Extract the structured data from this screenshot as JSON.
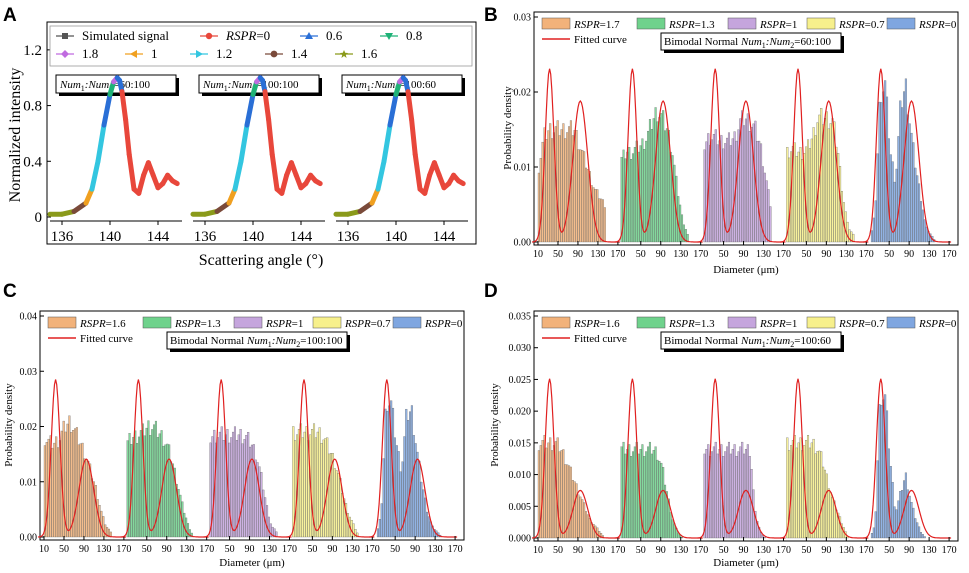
{
  "panels": [
    {
      "letter": "A",
      "chart_data": {
        "type": "line",
        "xlabel": "Scattering angle (°)",
        "ylabel": "Normalized intensity",
        "ylim": [
          0,
          1.4
        ],
        "yticks": [
          "0",
          "0.4",
          "0.8",
          "1.2"
        ],
        "xticks": [
          "136",
          "140",
          "144"
        ],
        "legend": [
          {
            "label": "Simulated signal",
            "color": "#555555",
            "marker": "square"
          },
          {
            "label": "RSPR=0",
            "color": "#e8473b",
            "marker": "circle"
          },
          {
            "label": "0.6",
            "color": "#2a6fd6",
            "marker": "triangle"
          },
          {
            "label": "0.8",
            "color": "#1fb277",
            "marker": "triangle-down"
          },
          {
            "label": "1.8",
            "color": "#c06be0",
            "marker": "diamond"
          },
          {
            "label": "1",
            "color": "#f0a020",
            "marker": "triangle-left"
          },
          {
            "label": "1.2",
            "color": "#33c6e0",
            "marker": "triangle-right"
          },
          {
            "label": "1.4",
            "color": "#7a4a3a",
            "marker": "hexagon"
          },
          {
            "label": "1.6",
            "color": "#8a9a1a",
            "marker": "star"
          }
        ],
        "subplots": [
          {
            "annotation": "Num1:Num2=60:100",
            "xrange": [
              135,
              146
            ]
          },
          {
            "annotation": "Num1:Num2=100:100",
            "xrange": [
              135,
              146
            ]
          },
          {
            "annotation": "Num1:Num2=100:60",
            "xrange": [
              135,
              146
            ]
          }
        ],
        "curve": {
          "x": [
            135.0,
            136.0,
            137.0,
            138.0,
            138.5,
            139.0,
            139.5,
            140.0,
            140.3,
            140.6,
            140.8,
            141.0,
            141.3,
            141.6,
            142.0,
            142.4,
            142.8,
            143.2,
            143.6,
            144.0,
            144.4,
            144.8,
            145.2,
            145.6
          ],
          "y": [
            0.02,
            0.02,
            0.04,
            0.1,
            0.2,
            0.4,
            0.66,
            0.88,
            0.97,
            1.0,
            0.98,
            0.9,
            0.7,
            0.45,
            0.2,
            0.17,
            0.3,
            0.39,
            0.3,
            0.21,
            0.24,
            0.3,
            0.26,
            0.24
          ]
        }
      }
    },
    {
      "letter": "B",
      "chart_data": {
        "type": "bar",
        "xlabel": "Diameter (μm)",
        "ylabel": "Probability density",
        "ylim": [
          0,
          0.03
        ],
        "yticks": [
          "0.00",
          "0.01",
          "0.02",
          "0.03"
        ],
        "xticks": [
          "10",
          "50",
          "90",
          "130",
          "170"
        ],
        "annotation": "Bimodal Normal Num1:Num2=60:100",
        "legend": [
          {
            "label": "RSPR=1.7",
            "color": "#f2b27a"
          },
          {
            "label": "RSPR=1.3",
            "color": "#6fd28c"
          },
          {
            "label": "RSPR=1",
            "color": "#c5a5dd"
          },
          {
            "label": "RSPR=0.7",
            "color": "#f7f08c"
          },
          {
            "label": "RSPR=0",
            "color": "#7fa6e0"
          },
          {
            "label": "Fitted curve",
            "color": "#e02020"
          }
        ],
        "peaks": [
          0.0231,
          0.0188
        ],
        "series": [
          {
            "name": "RSPR=1.7",
            "profile": [
              0.01,
              0.014,
              0.015,
              0.015,
              0.015,
              0.015,
              0.015,
              0.015,
              0.013,
              0.011,
              0.009,
              0.007,
              0.006,
              0.005
            ]
          },
          {
            "name": "RSPR=1.3",
            "profile": [
              0.011,
              0.012,
              0.012,
              0.0125,
              0.013,
              0.014,
              0.016,
              0.0175,
              0.0165,
              0.015,
              0.012,
              0.007,
              0.003,
              0.001
            ]
          },
          {
            "name": "RSPR=1",
            "profile": [
              0.013,
              0.014,
              0.014,
              0.0135,
              0.0135,
              0.0135,
              0.014,
              0.016,
              0.0165,
              0.016,
              0.015,
              0.013,
              0.009,
              0.005
            ]
          },
          {
            "name": "RSPR=0.7",
            "profile": [
              0.012,
              0.0125,
              0.012,
              0.012,
              0.0125,
              0.014,
              0.0165,
              0.0165,
              0.0165,
              0.016,
              0.012,
              0.006,
              0.002,
              0.001
            ]
          },
          {
            "name": "RSPR=0",
            "profile": [
              0.0,
              0.004,
              0.02,
              0.021,
              0.012,
              0.008,
              0.018,
              0.021,
              0.015,
              0.01,
              0.006,
              0.002,
              0.001,
              0.0
            ]
          }
        ]
      }
    },
    {
      "letter": "C",
      "chart_data": {
        "type": "bar",
        "xlabel": "Diameter (μm)",
        "ylabel": "Probability density",
        "ylim": [
          0,
          0.04
        ],
        "yticks": [
          "0.00",
          "0.01",
          "0.02",
          "0.03",
          "0.04"
        ],
        "xticks": [
          "10",
          "50",
          "90",
          "130",
          "170"
        ],
        "annotation": "Bimodal Normal Num1:Num2=100:100",
        "legend": [
          {
            "label": "RSPR=1.6",
            "color": "#f2b27a"
          },
          {
            "label": "RSPR=1.3",
            "color": "#6fd28c"
          },
          {
            "label": "RSPR=1",
            "color": "#c5a5dd"
          },
          {
            "label": "RSPR=0.7",
            "color": "#f7f08c"
          },
          {
            "label": "RSPR=0",
            "color": "#7fa6e0"
          },
          {
            "label": "Fitted curve",
            "color": "#e02020"
          }
        ],
        "peaks": [
          0.0285,
          0.0141
        ],
        "series": [
          {
            "name": "RSPR=1.6",
            "profile": [
              0.018,
              0.017,
              0.017,
              0.018,
              0.02,
              0.021,
              0.019,
              0.017,
              0.015,
              0.012,
              0.009,
              0.005,
              0.002,
              0.001
            ]
          },
          {
            "name": "RSPR=1.3",
            "profile": [
              0.017,
              0.018,
              0.0185,
              0.019,
              0.02,
              0.02,
              0.019,
              0.018,
              0.016,
              0.013,
              0.009,
              0.005,
              0.002,
              0.0
            ]
          },
          {
            "name": "RSPR=1",
            "profile": [
              0.018,
              0.0185,
              0.0185,
              0.0185,
              0.0185,
              0.0185,
              0.0185,
              0.018,
              0.017,
              0.015,
              0.011,
              0.006,
              0.002,
              0.001
            ]
          },
          {
            "name": "RSPR=0.7",
            "profile": [
              0.019,
              0.019,
              0.019,
              0.019,
              0.019,
              0.019,
              0.018,
              0.016,
              0.014,
              0.011,
              0.007,
              0.004,
              0.002,
              0.0
            ]
          },
          {
            "name": "RSPR=0",
            "profile": [
              0.0,
              0.004,
              0.025,
              0.024,
              0.017,
              0.012,
              0.022,
              0.023,
              0.016,
              0.01,
              0.005,
              0.002,
              0.001,
              0.0
            ]
          }
        ]
      }
    },
    {
      "letter": "D",
      "chart_data": {
        "type": "bar",
        "xlabel": "Diameter (μm)",
        "ylabel": "Probability density",
        "ylim": [
          0,
          0.035
        ],
        "yticks": [
          "0.000",
          "0.005",
          "0.010",
          "0.015",
          "0.020",
          "0.025",
          "0.030",
          "0.035"
        ],
        "xticks": [
          "10",
          "50",
          "90",
          "130",
          "170"
        ],
        "annotation": "Bimodal Normal Num1:Num2=100:60",
        "legend": [
          {
            "label": "RSPR=1.6",
            "color": "#f2b27a"
          },
          {
            "label": "RSPR=1.3",
            "color": "#6fd28c"
          },
          {
            "label": "RSPR=1",
            "color": "#c5a5dd"
          },
          {
            "label": "RSPR=0.7",
            "color": "#f7f08c"
          },
          {
            "label": "RSPR=0",
            "color": "#7fa6e0"
          },
          {
            "label": "Fitted curve",
            "color": "#e02020"
          }
        ],
        "peaks": [
          0.0251,
          0.0075
        ],
        "series": [
          {
            "name": "RSPR=1.6",
            "profile": [
              0.015,
              0.015,
              0.015,
              0.015,
              0.0145,
              0.013,
              0.011,
              0.009,
              0.007,
              0.005,
              0.003,
              0.002,
              0.001,
              0.0
            ]
          },
          {
            "name": "RSPR=1.3",
            "profile": [
              0.014,
              0.014,
              0.014,
              0.014,
              0.014,
              0.014,
              0.014,
              0.0135,
              0.011,
              0.007,
              0.003,
              0.001,
              0.0,
              0.0
            ]
          },
          {
            "name": "RSPR=1",
            "profile": [
              0.014,
              0.014,
              0.014,
              0.014,
              0.014,
              0.014,
              0.014,
              0.014,
              0.014,
              0.014,
              0.004,
              0.001,
              0.0,
              0.0
            ]
          },
          {
            "name": "RSPR=0.7",
            "profile": [
              0.015,
              0.015,
              0.015,
              0.015,
              0.015,
              0.015,
              0.014,
              0.012,
              0.009,
              0.006,
              0.004,
              0.002,
              0.0,
              0.0
            ]
          },
          {
            "name": "RSPR=0",
            "profile": [
              0.0,
              0.002,
              0.023,
              0.022,
              0.012,
              0.004,
              0.007,
              0.01,
              0.006,
              0.003,
              0.001,
              0.0,
              0.0,
              0.0
            ]
          }
        ]
      }
    }
  ]
}
